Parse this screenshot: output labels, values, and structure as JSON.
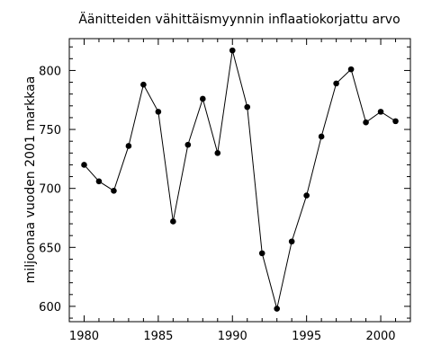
{
  "chart_data": {
    "type": "line",
    "title": "Äänitteiden vähittäismyynnin inflaatiokorjattu arvo",
    "xlabel": "",
    "ylabel": "miljoonaa vuoden 2001 markkaa",
    "xlim": [
      1979,
      2002
    ],
    "ylim": [
      587,
      827
    ],
    "x_ticks": [
      1980,
      1985,
      1990,
      1995,
      2000
    ],
    "x_tick_labels": [
      "1980",
      "1985",
      "1990",
      "1995",
      "2000"
    ],
    "y_ticks": [
      600,
      650,
      700,
      750,
      800
    ],
    "y_tick_labels": [
      "600",
      "650",
      "700",
      "750",
      "800"
    ],
    "grid": false,
    "series": [
      {
        "x": [
          1980,
          1981,
          1982,
          1983,
          1984,
          1985,
          1986,
          1987,
          1988,
          1989,
          1990,
          1991,
          1992,
          1993,
          1994,
          1995,
          1996,
          1997,
          1998,
          1999,
          2000,
          2001
        ],
        "values": [
          720,
          706,
          698,
          736,
          788,
          765,
          672,
          737,
          776,
          730,
          817,
          769,
          645,
          598,
          655,
          694,
          744,
          789,
          801,
          756,
          765,
          757
        ],
        "color": "#000000",
        "marker": "circle"
      }
    ]
  }
}
